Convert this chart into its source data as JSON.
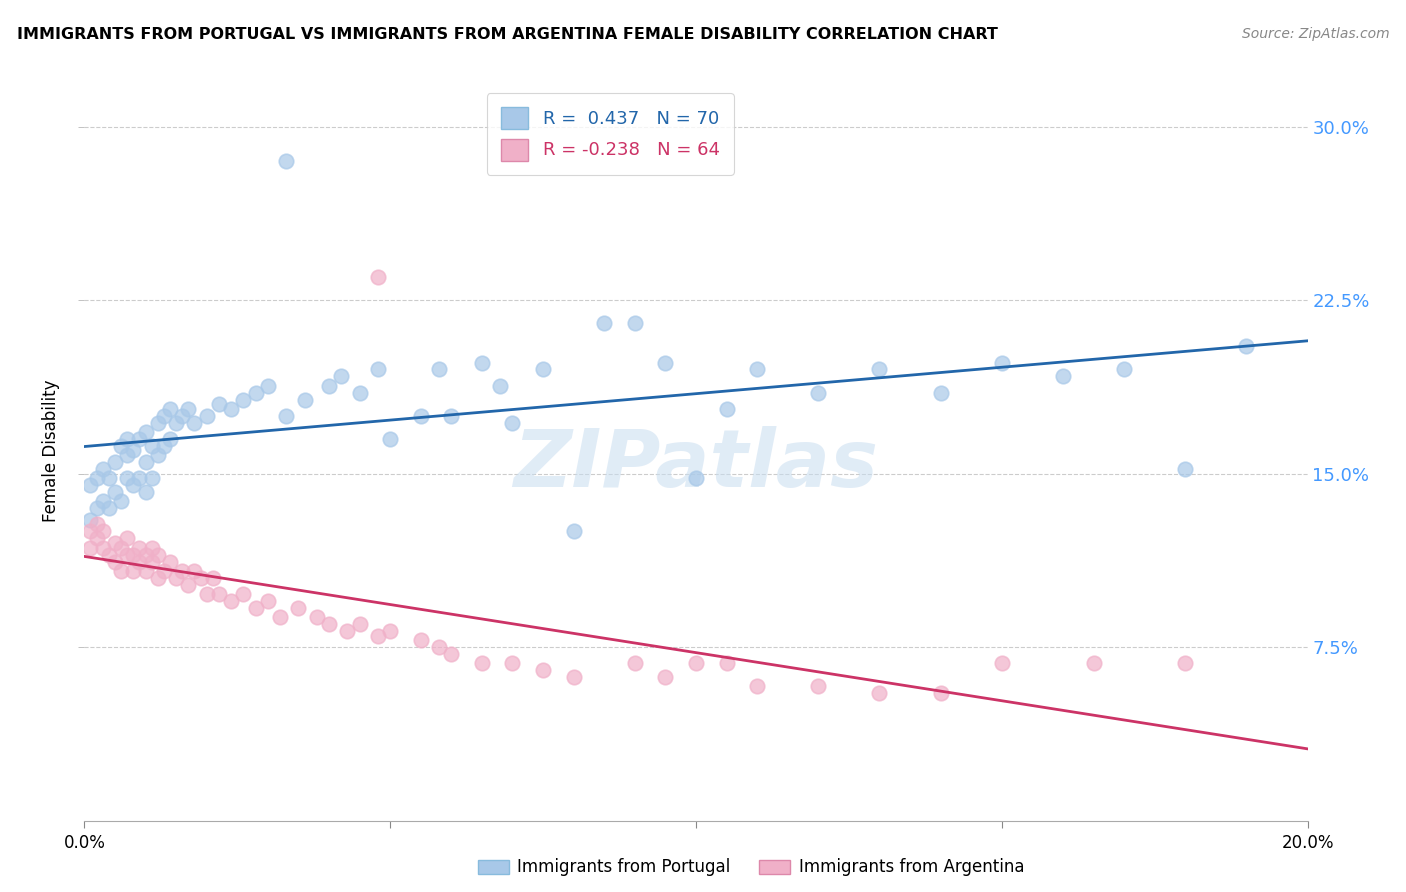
{
  "title": "IMMIGRANTS FROM PORTUGAL VS IMMIGRANTS FROM ARGENTINA FEMALE DISABILITY CORRELATION CHART",
  "source": "Source: ZipAtlas.com",
  "ylabel": "Female Disability",
  "xlim": [
    0.0,
    0.2
  ],
  "ylim": [
    0.0,
    0.32
  ],
  "yticks": [
    0.075,
    0.15,
    0.225,
    0.3
  ],
  "ytick_labels": [
    "7.5%",
    "15.0%",
    "22.5%",
    "30.0%"
  ],
  "xticks": [
    0.0,
    0.05,
    0.1,
    0.15,
    0.2
  ],
  "portugal_R": 0.437,
  "portugal_N": 70,
  "argentina_R": -0.238,
  "argentina_N": 64,
  "portugal_color": "#a8c8e8",
  "portugal_line_color": "#2266aa",
  "argentina_color": "#f0b0c8",
  "argentina_line_color": "#cc3366",
  "watermark_text": "ZIPatlas",
  "background_color": "#ffffff",
  "grid_color": "#cccccc",
  "portugal_x": [
    0.001,
    0.001,
    0.002,
    0.002,
    0.003,
    0.003,
    0.004,
    0.004,
    0.005,
    0.005,
    0.006,
    0.006,
    0.007,
    0.007,
    0.007,
    0.008,
    0.008,
    0.009,
    0.009,
    0.01,
    0.01,
    0.01,
    0.011,
    0.011,
    0.012,
    0.012,
    0.013,
    0.013,
    0.014,
    0.014,
    0.015,
    0.016,
    0.017,
    0.018,
    0.02,
    0.022,
    0.024,
    0.026,
    0.028,
    0.03,
    0.033,
    0.036,
    0.04,
    0.042,
    0.045,
    0.048,
    0.05,
    0.055,
    0.058,
    0.06,
    0.065,
    0.068,
    0.07,
    0.075,
    0.08,
    0.085,
    0.09,
    0.095,
    0.1,
    0.105,
    0.11,
    0.12,
    0.13,
    0.14,
    0.15,
    0.16,
    0.17,
    0.18,
    0.19,
    0.033
  ],
  "portugal_y": [
    0.13,
    0.145,
    0.135,
    0.148,
    0.138,
    0.152,
    0.135,
    0.148,
    0.142,
    0.155,
    0.138,
    0.162,
    0.148,
    0.158,
    0.165,
    0.145,
    0.16,
    0.148,
    0.165,
    0.142,
    0.155,
    0.168,
    0.148,
    0.162,
    0.158,
    0.172,
    0.162,
    0.175,
    0.165,
    0.178,
    0.172,
    0.175,
    0.178,
    0.172,
    0.175,
    0.18,
    0.178,
    0.182,
    0.185,
    0.188,
    0.175,
    0.182,
    0.188,
    0.192,
    0.185,
    0.195,
    0.165,
    0.175,
    0.195,
    0.175,
    0.198,
    0.188,
    0.172,
    0.195,
    0.125,
    0.215,
    0.215,
    0.198,
    0.148,
    0.178,
    0.195,
    0.185,
    0.195,
    0.185,
    0.198,
    0.192,
    0.195,
    0.152,
    0.205,
    0.285
  ],
  "argentina_x": [
    0.001,
    0.001,
    0.002,
    0.002,
    0.003,
    0.003,
    0.004,
    0.005,
    0.005,
    0.006,
    0.006,
    0.007,
    0.007,
    0.008,
    0.008,
    0.009,
    0.009,
    0.01,
    0.01,
    0.011,
    0.011,
    0.012,
    0.012,
    0.013,
    0.014,
    0.015,
    0.016,
    0.017,
    0.018,
    0.019,
    0.02,
    0.021,
    0.022,
    0.024,
    0.026,
    0.028,
    0.03,
    0.032,
    0.035,
    0.038,
    0.04,
    0.043,
    0.045,
    0.048,
    0.05,
    0.055,
    0.058,
    0.06,
    0.065,
    0.07,
    0.075,
    0.08,
    0.09,
    0.095,
    0.1,
    0.105,
    0.11,
    0.12,
    0.13,
    0.14,
    0.15,
    0.165,
    0.18,
    0.048
  ],
  "argentina_y": [
    0.118,
    0.125,
    0.122,
    0.128,
    0.118,
    0.125,
    0.115,
    0.12,
    0.112,
    0.118,
    0.108,
    0.115,
    0.122,
    0.108,
    0.115,
    0.112,
    0.118,
    0.108,
    0.115,
    0.112,
    0.118,
    0.105,
    0.115,
    0.108,
    0.112,
    0.105,
    0.108,
    0.102,
    0.108,
    0.105,
    0.098,
    0.105,
    0.098,
    0.095,
    0.098,
    0.092,
    0.095,
    0.088,
    0.092,
    0.088,
    0.085,
    0.082,
    0.085,
    0.08,
    0.082,
    0.078,
    0.075,
    0.072,
    0.068,
    0.068,
    0.065,
    0.062,
    0.068,
    0.062,
    0.068,
    0.068,
    0.058,
    0.058,
    0.055,
    0.055,
    0.068,
    0.068,
    0.068,
    0.235
  ]
}
